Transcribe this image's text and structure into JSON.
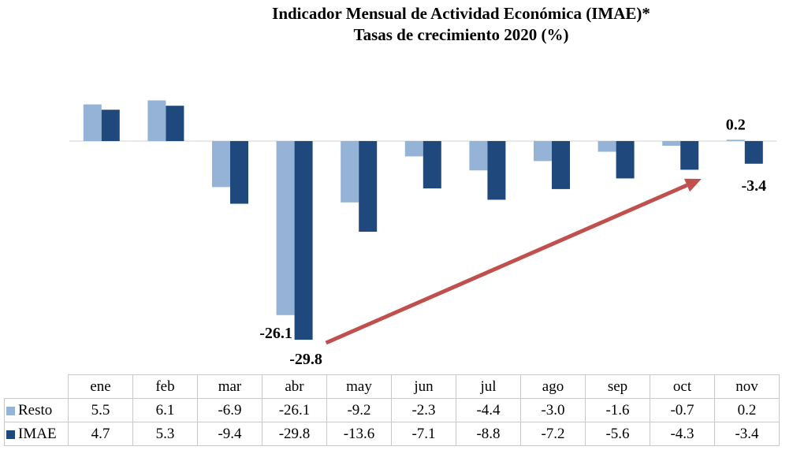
{
  "title": {
    "line1": "Indicador Mensual de Actividad Económica (IMAE)*",
    "line2": "Tasas de crecimiento 2020 (%)"
  },
  "colors": {
    "resto": "#95b3d7",
    "imae": "#1f497d",
    "arrow": "#c0504d"
  },
  "chart_data": {
    "type": "bar",
    "categories": [
      "ene",
      "feb",
      "mar",
      "abr",
      "may",
      "jun",
      "jul",
      "ago",
      "sep",
      "oct",
      "nov"
    ],
    "series": [
      {
        "name": "Resto",
        "values": [
          5.5,
          6.1,
          -6.9,
          -26.1,
          -9.2,
          -2.3,
          -4.4,
          -3.0,
          -1.6,
          -0.7,
          0.2
        ]
      },
      {
        "name": "IMAE",
        "values": [
          4.7,
          5.3,
          -9.4,
          -29.8,
          -13.6,
          -7.1,
          -8.8,
          -7.2,
          -5.6,
          -4.3,
          -3.4
        ]
      }
    ],
    "data_labels": [
      {
        "series": "Resto",
        "category": "abr",
        "text": "-26.1"
      },
      {
        "series": "IMAE",
        "category": "abr",
        "text": "-29.8"
      },
      {
        "series": "Resto",
        "category": "nov",
        "text": "0.2"
      },
      {
        "series": "IMAE",
        "category": "nov",
        "text": "-3.4"
      }
    ],
    "annotation": "trend arrow from abr to nov",
    "legend": "data table below chart",
    "grid": false,
    "ylim": [
      -31,
      8
    ]
  },
  "table": {
    "rows": [
      {
        "key": "resto",
        "label": "Resto",
        "values": [
          "5.5",
          "6.1",
          "-6.9",
          "-26.1",
          "-9.2",
          "-2.3",
          "-4.4",
          "-3.0",
          "-1.6",
          "-0.7",
          "0.2"
        ]
      },
      {
        "key": "imae",
        "label": "IMAE",
        "values": [
          "4.7",
          "5.3",
          "-9.4",
          "-29.8",
          "-13.6",
          "-7.1",
          "-8.8",
          "-7.2",
          "-5.6",
          "-4.3",
          "-3.4"
        ]
      }
    ]
  }
}
